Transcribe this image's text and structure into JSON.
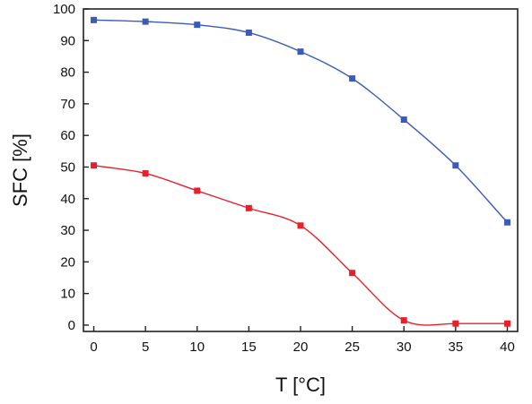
{
  "chart_data": {
    "type": "line",
    "title": "",
    "xlabel": "T [°C]",
    "ylabel": "SFC [%]",
    "xlim": [
      -1,
      41
    ],
    "ylim": [
      -2,
      100
    ],
    "xticks": [
      0,
      5,
      10,
      15,
      20,
      25,
      30,
      35,
      40
    ],
    "yticks": [
      0,
      10,
      20,
      30,
      40,
      50,
      60,
      70,
      80,
      90,
      100
    ],
    "grid": false,
    "legend": "none",
    "series": [
      {
        "color": "#3a5bb8",
        "marker": "square",
        "x": [
          0,
          5,
          10,
          15,
          20,
          25,
          30,
          35,
          40
        ],
        "y": [
          96.5,
          96,
          95,
          92.5,
          86.5,
          78,
          65,
          50.5,
          32.5
        ]
      },
      {
        "color": "#e8202a",
        "marker": "square",
        "x": [
          0,
          5,
          10,
          15,
          20,
          25,
          30,
          35,
          40
        ],
        "y": [
          50.5,
          48,
          42.5,
          37,
          31.5,
          16.5,
          1.5,
          0.5,
          0.5
        ]
      }
    ]
  }
}
